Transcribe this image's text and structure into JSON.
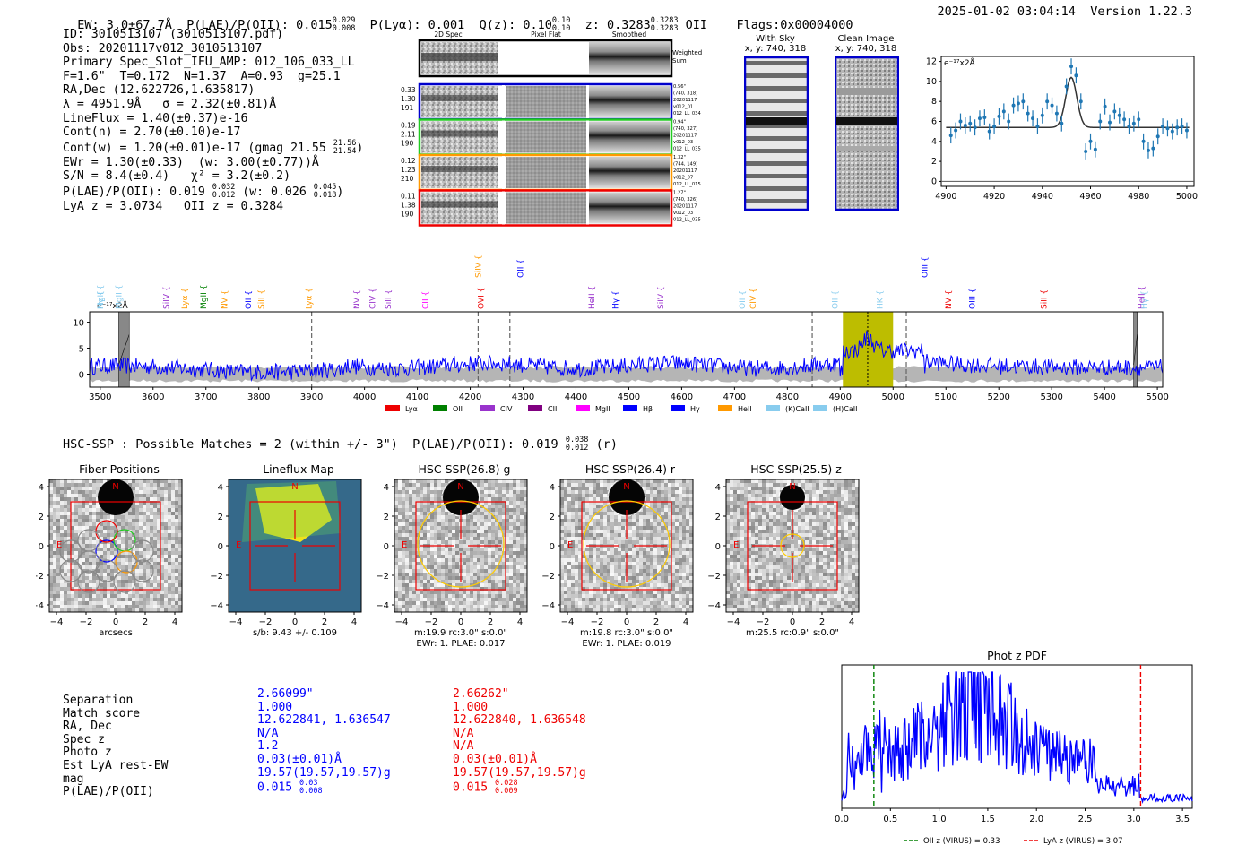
{
  "header": {
    "ew": "EW: 3.0±67.7Å",
    "plae_label": "P(LAE)/P(OII): 0.015",
    "plae_hi": "0.029",
    "plae_lo": "0.008",
    "plya": "P(Lyα): 0.001",
    "qz_label": "Q(z): 0.10",
    "qz_hi": "0.10",
    "qz_lo": "0.10",
    "z_label": "z: 0.3283",
    "z_hi": "0.3283",
    "z_lo": "0.3283",
    "z_line": "OII",
    "flags": "Flags:0x00004000",
    "datetime": "2025-01-02 03:04:14",
    "version": "Version 1.22.3"
  },
  "info": {
    "id": "ID: 3010513107 (3010513107.pdf)",
    "obs": "Obs: 20201117v012_3010513107",
    "primary": "Primary Spec_Slot_IFU_AMP: 012_106_033_LL",
    "params": "F=1.6\"  T=0.172  N=1.37  A=0.93  g=25.1",
    "radec": "RA,Dec (12.622726,1.635817)",
    "lambda": "λ = 4951.9Å   σ = 2.32(±0.81)Å",
    "lineflux": "LineFlux = 1.40(±0.37)e-16",
    "contn": "Cont(n) = 2.70(±0.10)e-17",
    "contw": "Cont(w) = 1.20(±0.01)e-17 (gmag 21.55",
    "contw_hi": "21.56",
    "contw_lo": "21.54",
    "ewr": "EWr = 1.30(±0.33)  (w: 3.00(±0.77))Å",
    "sn": "S/N = 8.4(±0.4)   χ² = 3.2(±0.2)",
    "plae": "P(LAE)/P(OII): 0.019",
    "plae_hi": "0.032",
    "plae_lo": "0.012",
    "plae_w": "(w: 0.026",
    "plae_w_hi": "0.045",
    "plae_w_lo": "0.018",
    "lya": "LyA z = 3.0734   OII z = 0.3284"
  },
  "spec2d": {
    "col_titles": [
      "2D Spec",
      "Pixel Flat",
      "Smoothed"
    ],
    "weighted_sum": [
      "Weighted",
      "Sum"
    ],
    "rows": [
      {
        "left": [
          "0.33",
          "1.30",
          "191"
        ],
        "right": [
          "0.56\"",
          "(740, 318)",
          "20201117",
          "v012_01",
          "012_LL_034"
        ],
        "color": "#0000cc"
      },
      {
        "left": [
          "0.19",
          "2.11",
          "190"
        ],
        "right": [
          "0.94\"",
          "(740, 327)",
          "20201117",
          "v012_03",
          "012_LL_035"
        ],
        "color": "#22cc22"
      },
      {
        "left": [
          "0.12",
          "1.23",
          "210"
        ],
        "right": [
          "1.32\"",
          "(744, 149)",
          "20201117",
          "v012_07",
          "012_LL_015"
        ],
        "color": "#ff9900"
      },
      {
        "left": [
          "0.11",
          "1.38",
          "190"
        ],
        "right": [
          "1.27\"",
          "(740, 326)",
          "20201117",
          "v012_03",
          "012_LL_035"
        ],
        "color": "#ee0000"
      }
    ]
  },
  "sky": {
    "with_sky_title": "With Sky",
    "with_sky_coords": "x, y: 740, 318",
    "clean_title": "Clean Image",
    "clean_coords": "x, y: 740, 318"
  },
  "zoom_fit": {
    "unit_label": "e⁻¹⁷x2Å",
    "xticks": [
      "4900",
      "4920",
      "4940",
      "4960",
      "4980",
      "5000"
    ],
    "yticks": [
      "0",
      "2",
      "4",
      "6",
      "8",
      "10",
      "12"
    ]
  },
  "full_spec": {
    "unit_label": "e⁻¹⁷x2Å",
    "xticks": [
      "3500",
      "3600",
      "3700",
      "3800",
      "3900",
      "4000",
      "4100",
      "4200",
      "4300",
      "4400",
      "4500",
      "4600",
      "4700",
      "4800",
      "4900",
      "5000",
      "5100",
      "5200",
      "5300",
      "5400",
      "5500"
    ],
    "yticks": [
      "0",
      "5",
      "10"
    ],
    "line_labels": [
      {
        "text": "MgII",
        "color": "#88ccee"
      },
      {
        "text": "MgII",
        "color": "#88ccee"
      },
      {
        "text": "SiIV",
        "color": "#9933cc"
      },
      {
        "text": "Lyα",
        "color": "#ff9900"
      },
      {
        "text": "MgII",
        "color": "#008000"
      },
      {
        "text": "NV",
        "color": "#ff9900"
      },
      {
        "text": "OII",
        "color": "#0000ff"
      },
      {
        "text": "SiII",
        "color": "#ff9900"
      },
      {
        "text": "Lyα",
        "color": "#ff9900"
      },
      {
        "text": "NV",
        "color": "#9933cc"
      },
      {
        "text": "CIV",
        "color": "#9933cc"
      },
      {
        "text": "SiII",
        "color": "#9933cc"
      },
      {
        "text": "CII",
        "color": "#ff00ff"
      },
      {
        "text": "SiIV",
        "color": "#ff9900"
      },
      {
        "text": "OVI",
        "color": "#ee0000"
      },
      {
        "text": "OII",
        "color": "#0000ff"
      },
      {
        "text": "HeII",
        "color": "#9933cc"
      },
      {
        "text": "Hγ",
        "color": "#0000ff"
      },
      {
        "text": "SiIV",
        "color": "#9933cc"
      },
      {
        "text": "OII",
        "color": "#88ccee"
      },
      {
        "text": "CIV",
        "color": "#ff9900"
      },
      {
        "text": "OII",
        "color": "#88ccee"
      },
      {
        "text": "HK",
        "color": "#88ccee"
      },
      {
        "text": "OIII",
        "color": "#0000ff"
      },
      {
        "text": "NV",
        "color": "#ee0000"
      },
      {
        "text": "OIII",
        "color": "#0000ff"
      },
      {
        "text": "SiII",
        "color": "#ee0000"
      },
      {
        "text": "HeII",
        "color": "#9933cc"
      },
      {
        "text": "Hγ",
        "color": "#88ccee"
      },
      {
        "text": "Hγ",
        "color": "#88ccee"
      }
    ],
    "legend": [
      {
        "label": "Lyα",
        "color": "#ee0000"
      },
      {
        "label": "OII",
        "color": "#008000"
      },
      {
        "label": "CIV",
        "color": "#9933cc"
      },
      {
        "label": "CIII",
        "color": "#800080"
      },
      {
        "label": "MgII",
        "color": "#ff00ff"
      },
      {
        "label": "Hβ",
        "color": "#0000ff"
      },
      {
        "label": "Hγ",
        "color": "#0000ff"
      },
      {
        "label": "HeII",
        "color": "#ff9900"
      },
      {
        "label": "(K)CaII",
        "color": "#88ccee"
      },
      {
        "label": "(H)CaII",
        "color": "#88ccee"
      }
    ]
  },
  "hsc": {
    "title": "HSC-SSP : Possible Matches = 2 (within +/- 3\")  P(LAE)/P(OII): 0.019",
    "title_hi": "0.038",
    "title_lo": "0.012",
    "title_band": "(r)",
    "cutouts": [
      {
        "title": "Fiber Positions",
        "cap1": "arcsecs",
        "cap2": ""
      },
      {
        "title": "Lineflux Map",
        "cap1": "s/b: 9.43 +/- 0.109",
        "cap2": ""
      },
      {
        "title": "HSC SSP(26.8) g",
        "cap1": "m:19.9 rc:3.0\"  s:0.0\"",
        "cap2": "EWr: 1. PLAE: 0.017"
      },
      {
        "title": "HSC SSP(26.4) r",
        "cap1": "m:19.8 rc:3.0\"  s:0.0\"",
        "cap2": "EWr: 1. PLAE: 0.019"
      },
      {
        "title": "HSC SSP(25.5) z",
        "cap1": "m:25.5 rc:0.9\"  s:0.0\"",
        "cap2": ""
      }
    ],
    "ticks": [
      "4",
      "2",
      "0",
      "−2",
      "−4"
    ],
    "xticks": [
      "−4",
      "−2",
      "0",
      "2",
      "4"
    ],
    "n_label": "N",
    "e_label": "E"
  },
  "matches": {
    "labels": [
      "Separation",
      "Match score",
      "RA, Dec",
      "Spec z",
      "Photo z",
      "Est LyA rest-EW",
      "mag",
      "P(LAE)/P(OII)"
    ],
    "col1": [
      "2.66099\"",
      "1.000",
      "12.622841, 1.636547",
      "N/A",
      "1.2",
      "0.03(±0.01)Å",
      "19.57(19.57,19.57)g",
      "0.015"
    ],
    "col1_hi": "0.03",
    "col1_lo": "0.008",
    "col2": [
      "2.66262\"",
      "1.000",
      "12.622840, 1.636548",
      "N/A",
      "N/A",
      "0.03(±0.01)Å",
      "19.57(19.57,19.57)g",
      "0.015"
    ],
    "col2_hi": "0.028",
    "col2_lo": "0.009"
  },
  "chart_data": [
    {
      "type": "scatter",
      "title": "",
      "xlabel": "",
      "ylabel": "e⁻¹⁷x2Å",
      "xlim": [
        4898,
        5003
      ],
      "ylim": [
        -0.5,
        12.5
      ],
      "points_x": [
        4902,
        4904,
        4906,
        4908,
        4910,
        4912,
        4914,
        4916,
        4918,
        4920,
        4922,
        4924,
        4926,
        4928,
        4930,
        4932,
        4934,
        4936,
        4938,
        4940,
        4942,
        4944,
        4946,
        4948,
        4950,
        4952,
        4954,
        4956,
        4958,
        4960,
        4962,
        4964,
        4966,
        4968,
        4970,
        4972,
        4974,
        4976,
        4978,
        4980,
        4982,
        4984,
        4986,
        4988,
        4990,
        4992,
        4994,
        4996,
        4998,
        5000
      ],
      "points_y": [
        4.6,
        5.1,
        6,
        5.6,
        5.8,
        5.4,
        6.3,
        6.4,
        5,
        5.5,
        6.5,
        7,
        6,
        7.6,
        7.8,
        8,
        6.8,
        6.3,
        5.5,
        6.6,
        8,
        7.6,
        6.8,
        5.8,
        9.5,
        11.5,
        10.6,
        8,
        3,
        4,
        3.2,
        6,
        7.5,
        5.9,
        7,
        6.6,
        6.2,
        5.5,
        5.8,
        6.2,
        4,
        3.1,
        3.3,
        4.5,
        5.5,
        5.3,
        5,
        5.4,
        5.5,
        5.1
      ],
      "fit_baseline": 5.4,
      "fit_center": 4952,
      "fit_peak": 10.4,
      "fit_sigma": 2.3
    },
    {
      "type": "line",
      "title": "",
      "xlabel": "",
      "ylabel": "e⁻¹⁷x2Å",
      "xlim": [
        3480,
        5510
      ],
      "ylim": [
        -2.5,
        12
      ],
      "series": [
        {
          "color": "#0000ff"
        }
      ],
      "highlight_band": [
        4905,
        5000
      ],
      "line_center": 4952,
      "masked": [
        [
          3535,
          3555
        ],
        [
          5455,
          5462
        ]
      ],
      "dashed_lines": [
        3900,
        4215,
        4275,
        4847,
        5025
      ]
    },
    {
      "type": "line",
      "title": "Phot z PDF",
      "xlabel": "",
      "ylabel": "",
      "xlim": [
        0.0,
        3.6
      ],
      "xticks": [
        "0.0",
        "0.5",
        "1.0",
        "1.5",
        "2.0",
        "2.5",
        "3.0",
        "3.5"
      ],
      "vlines": [
        {
          "x": 0.33,
          "color": "#008000",
          "label": "OII z (VIRUS) = 0.33"
        },
        {
          "x": 3.07,
          "color": "#ee0000",
          "label": "LyA z (VIRUS) = 3.07"
        }
      ]
    }
  ]
}
